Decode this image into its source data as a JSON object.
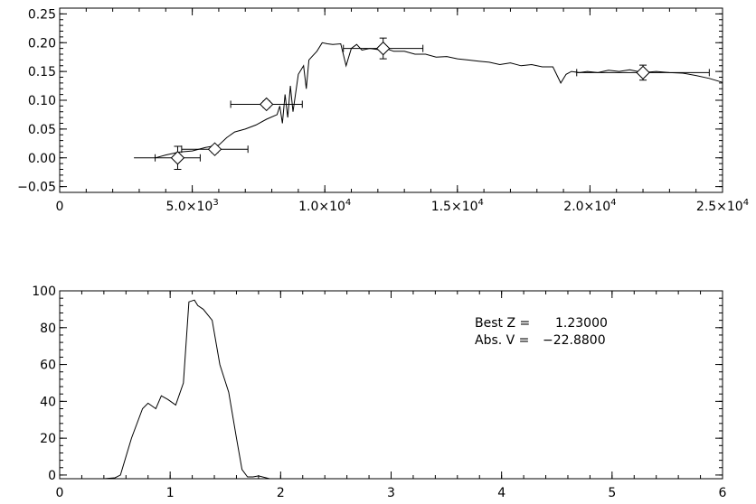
{
  "chart_data": [
    {
      "type": "line",
      "title": "",
      "xlabel": "",
      "ylabel": "",
      "xlim": [
        0,
        25000
      ],
      "ylim": [
        -0.06,
        0.26
      ],
      "x_ticks": [
        {
          "value": 0,
          "label": "0"
        },
        {
          "value": 5000,
          "label": "5.0×10",
          "exp": "3"
        },
        {
          "value": 10000,
          "label": "1.0×10",
          "exp": "4"
        },
        {
          "value": 15000,
          "label": "1.5×10",
          "exp": "4"
        },
        {
          "value": 20000,
          "label": "2.0×10",
          "exp": "4"
        },
        {
          "value": 25000,
          "label": "2.5×10",
          "exp": "4"
        }
      ],
      "y_ticks": [
        {
          "value": -0.05,
          "label": "−0.05"
        },
        {
          "value": 0.0,
          "label": "0.00"
        },
        {
          "value": 0.05,
          "label": "0.05"
        },
        {
          "value": 0.1,
          "label": "0.10"
        },
        {
          "value": 0.15,
          "label": "0.15"
        },
        {
          "value": 0.2,
          "label": "0.20"
        },
        {
          "value": 0.25,
          "label": "0.25"
        }
      ],
      "series": [
        {
          "kind": "line",
          "x": [
            2800,
            3600,
            4000,
            4500,
            5000,
            5500,
            6000,
            6300,
            6600,
            7000,
            7400,
            7800,
            8200,
            8300,
            8400,
            8500,
            8600,
            8700,
            8800,
            9000,
            9200,
            9300,
            9400,
            9500,
            9700,
            9900,
            10100,
            10300,
            10600,
            10800,
            11000,
            11200,
            11400,
            11700,
            12000,
            12300,
            12600,
            13000,
            13400,
            13800,
            14200,
            14600,
            15000,
            15400,
            15800,
            16200,
            16600,
            17000,
            17400,
            17800,
            18200,
            18600,
            18900,
            19100,
            19300,
            19600,
            19900,
            20300,
            20700,
            21100,
            21500,
            22000,
            22500,
            23000,
            23500,
            24000,
            24500,
            25000
          ],
          "y": [
            0.0,
            0.0,
            0.005,
            0.01,
            0.012,
            0.018,
            0.022,
            0.035,
            0.045,
            0.05,
            0.057,
            0.067,
            0.075,
            0.09,
            0.06,
            0.11,
            0.07,
            0.125,
            0.08,
            0.145,
            0.16,
            0.12,
            0.17,
            0.175,
            0.185,
            0.2,
            0.198,
            0.197,
            0.198,
            0.16,
            0.19,
            0.197,
            0.187,
            0.19,
            0.188,
            0.19,
            0.185,
            0.185,
            0.18,
            0.18,
            0.175,
            0.176,
            0.172,
            0.17,
            0.168,
            0.166,
            0.162,
            0.165,
            0.16,
            0.162,
            0.158,
            0.158,
            0.13,
            0.145,
            0.15,
            0.148,
            0.15,
            0.148,
            0.152,
            0.15,
            0.153,
            0.148,
            0.15,
            0.148,
            0.147,
            0.143,
            0.138,
            0.131
          ]
        },
        {
          "kind": "errorbar",
          "points": [
            {
              "x": 4450,
              "y": 0.0,
              "xerr": 850,
              "yerr": 0.02
            },
            {
              "x": 5850,
              "y": 0.015,
              "xerr": 1250,
              "yerr": 0.006
            },
            {
              "x": 7800,
              "y": 0.093,
              "xerr": 1350,
              "yerr": 0.006
            },
            {
              "x": 12200,
              "y": 0.19,
              "xerr": 1500,
              "yerr": 0.018
            },
            {
              "x": 22000,
              "y": 0.148,
              "xerr": 2500,
              "yerr": 0.013
            }
          ]
        }
      ]
    },
    {
      "type": "line",
      "title": "",
      "xlabel": "",
      "ylabel": "",
      "xlim": [
        0,
        6
      ],
      "ylim": [
        -2,
        100
      ],
      "x_ticks": [
        {
          "value": 0,
          "label": "0"
        },
        {
          "value": 1,
          "label": "1"
        },
        {
          "value": 2,
          "label": "2"
        },
        {
          "value": 3,
          "label": "3"
        },
        {
          "value": 4,
          "label": "4"
        },
        {
          "value": 5,
          "label": "5"
        },
        {
          "value": 6,
          "label": "6"
        }
      ],
      "y_ticks": [
        {
          "value": 0,
          "label": "0"
        },
        {
          "value": 20,
          "label": "20"
        },
        {
          "value": 40,
          "label": "40"
        },
        {
          "value": 60,
          "label": "60"
        },
        {
          "value": 80,
          "label": "80"
        },
        {
          "value": 100,
          "label": "100"
        }
      ],
      "series": [
        {
          "kind": "line",
          "x": [
            0,
            0.4,
            0.5,
            0.55,
            0.65,
            0.75,
            0.8,
            0.87,
            0.92,
            0.98,
            1.05,
            1.12,
            1.17,
            1.22,
            1.25,
            1.3,
            1.38,
            1.45,
            1.53,
            1.6,
            1.65,
            1.7,
            1.75,
            1.8,
            1.9,
            2.0,
            3.0,
            6.0
          ],
          "y": [
            -2,
            -2,
            -1.5,
            0,
            20,
            36,
            39,
            36,
            43,
            41,
            38,
            50,
            94,
            95,
            92,
            90,
            84,
            60,
            45,
            20,
            3,
            -1,
            -1,
            -0.5,
            -2,
            -2,
            -2,
            -2
          ]
        }
      ],
      "annotation": {
        "line1_label": "Best Z =",
        "line1_value": "1.23000",
        "line2_label": "Abs. V =",
        "line2_value": "−22.8800"
      }
    }
  ]
}
